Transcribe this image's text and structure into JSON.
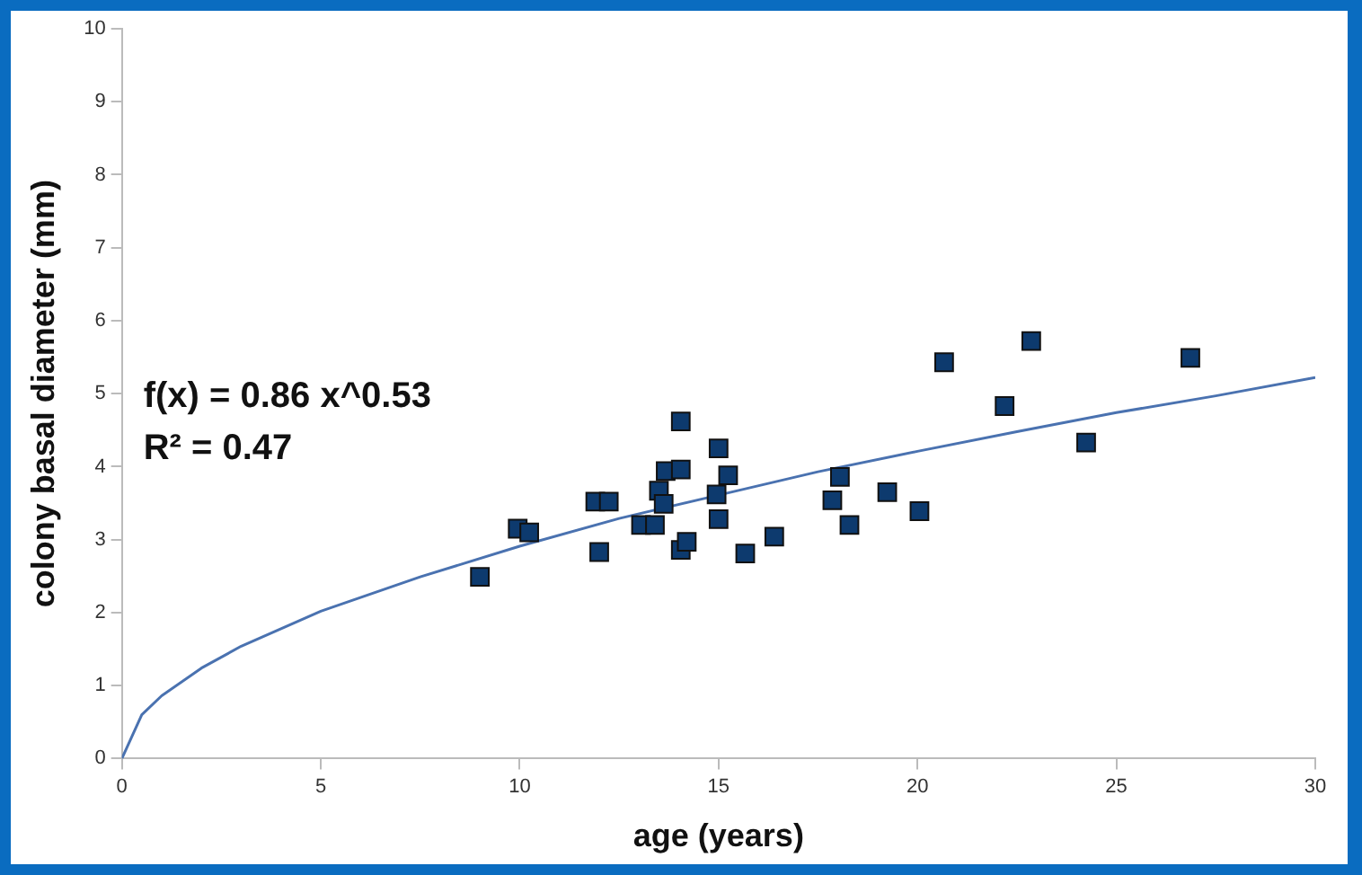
{
  "chart_data": {
    "type": "scatter",
    "xlabel": "age (years)",
    "ylabel": "colony basal diameter (mm)",
    "xlim": [
      0,
      30
    ],
    "xticks": [
      0,
      5,
      10,
      15,
      20,
      25,
      30
    ],
    "ylim": [
      0,
      10
    ],
    "yticks": [
      0,
      1,
      2,
      3,
      4,
      5,
      6,
      7,
      8,
      9,
      10
    ],
    "grid": false,
    "legend": false,
    "marker": "square",
    "annotations": [
      "f(x) = 0.86 x^0.53",
      "R² = 0.47"
    ],
    "series": [
      {
        "type": "scatter",
        "color": "#0d3a6e",
        "x": [
          9.0,
          9.95,
          10.24,
          11.9,
          12.24,
          12.0,
          13.05,
          13.4,
          13.5,
          13.67,
          13.62,
          14.05,
          14.05,
          14.05,
          14.2,
          14.95,
          15.0,
          15.0,
          15.24,
          15.67,
          16.4,
          17.86,
          18.05,
          18.29,
          19.24,
          20.05,
          20.67,
          22.19,
          22.86,
          24.24,
          26.86
        ],
        "values": [
          2.49,
          3.15,
          3.1,
          3.52,
          3.52,
          2.83,
          3.2,
          3.2,
          3.67,
          3.94,
          3.49,
          4.62,
          3.96,
          2.86,
          2.97,
          3.62,
          4.25,
          3.28,
          3.88,
          2.81,
          3.04,
          3.54,
          3.86,
          3.2,
          3.65,
          3.39,
          5.43,
          4.83,
          5.72,
          4.33,
          5.49
        ]
      },
      {
        "type": "line",
        "color": "#4a72b0",
        "marker": "none",
        "x": [
          0,
          0.5,
          1,
          2,
          3,
          5,
          7.5,
          10,
          12.5,
          15,
          17.5,
          20,
          22.5,
          25,
          27.5,
          30
        ],
        "values": [
          0,
          0.6,
          0.86,
          1.24,
          1.54,
          2.02,
          2.49,
          2.91,
          3.29,
          3.61,
          3.93,
          4.21,
          4.48,
          4.74,
          4.97,
          5.22
        ]
      }
    ]
  }
}
